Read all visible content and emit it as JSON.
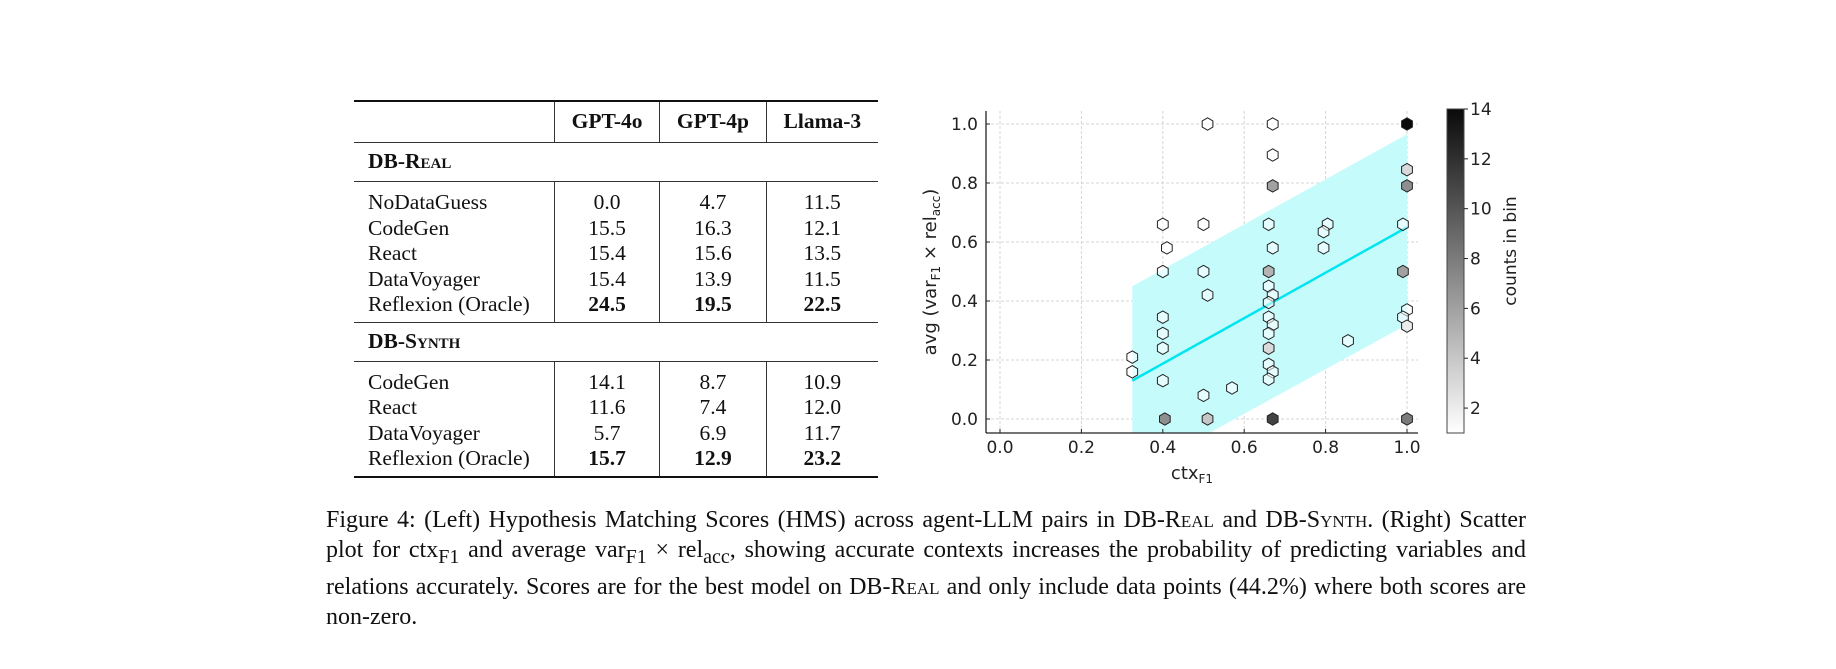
{
  "table": {
    "columns": [
      "",
      "GPT-4o",
      "GPT-4p",
      "Llama-3"
    ],
    "sections": [
      {
        "title": "DB-Real",
        "rows": [
          {
            "method": "NoDataGuess",
            "values": [
              "0.0",
              "4.7",
              "11.5"
            ],
            "bold": false
          },
          {
            "method": "CodeGen",
            "values": [
              "15.5",
              "16.3",
              "12.1"
            ],
            "bold": false
          },
          {
            "method": "React",
            "values": [
              "15.4",
              "15.6",
              "13.5"
            ],
            "bold": false
          },
          {
            "method": "DataVoyager",
            "values": [
              "15.4",
              "13.9",
              "11.5"
            ],
            "bold": false
          },
          {
            "method": "Reflexion (Oracle)",
            "values": [
              "24.5",
              "19.5",
              "22.5"
            ],
            "bold": true
          }
        ]
      },
      {
        "title": "DB-Synth",
        "rows": [
          {
            "method": "CodeGen",
            "values": [
              "14.1",
              "8.7",
              "10.9"
            ],
            "bold": false
          },
          {
            "method": "React",
            "values": [
              "11.6",
              "7.4",
              "12.0"
            ],
            "bold": false
          },
          {
            "method": "DataVoyager",
            "values": [
              "5.7",
              "6.9",
              "11.7"
            ],
            "bold": false
          },
          {
            "method": "Reflexion (Oracle)",
            "values": [
              "15.7",
              "12.9",
              "23.2"
            ],
            "bold": true
          }
        ]
      }
    ]
  },
  "caption": {
    "label": "Figure 4:",
    "part1": "(Left) Hypothesis Matching Scores (HMS) across agent-LLM pairs in DB-",
    "real_sc": "Real",
    "part2": " and DB-",
    "synth_sc": "Synth",
    "part3": ". (Right) Scatter plot for ctx",
    "sub_f1": "F1",
    "part4": " and average var",
    "sub_f1b": "F1",
    "part5": " × rel",
    "sub_acc": "acc",
    "part6": ", showing accurate contexts increases the probability of predicting variables and relations accurately. Scores are for the best model on DB-",
    "real_sc2": "Real",
    "part7": " and only include data points (44.2%) where both scores are non-zero."
  },
  "chart_data": {
    "type": "scatter",
    "subtype": "hexbin",
    "title": "",
    "xlabel": "ctx_F1",
    "ylabel": "avg (var_F1 × rel_acc)",
    "xlim": [
      -0.02,
      1.03
    ],
    "ylim": [
      -0.04,
      1.04
    ],
    "xticks": [
      0.0,
      0.2,
      0.4,
      0.6,
      0.8,
      1.0
    ],
    "yticks": [
      0.0,
      0.2,
      0.4,
      0.6,
      0.8,
      1.0
    ],
    "grid": true,
    "colorbar": {
      "label": "counts in bin",
      "min": 1,
      "max": 14,
      "ticks": [
        2,
        4,
        6,
        8,
        10,
        12,
        14
      ]
    },
    "regression": {
      "color": "#00e5ee",
      "x": [
        0.325,
        1.0
      ],
      "y": [
        0.13,
        0.65
      ]
    },
    "confidence_band": {
      "color": "#c6fbfc",
      "x": [
        0.325,
        1.0
      ],
      "upper": [
        0.45,
        0.965
      ],
      "lower": [
        -0.19,
        0.32
      ]
    },
    "points": [
      {
        "x": 0.325,
        "y": 0.21,
        "count": 1
      },
      {
        "x": 0.325,
        "y": 0.16,
        "count": 1
      },
      {
        "x": 0.4,
        "y": 0.66,
        "count": 1
      },
      {
        "x": 0.41,
        "y": 0.58,
        "count": 1
      },
      {
        "x": 0.4,
        "y": 0.5,
        "count": 1
      },
      {
        "x": 0.4,
        "y": 0.345,
        "count": 1
      },
      {
        "x": 0.4,
        "y": 0.29,
        "count": 1
      },
      {
        "x": 0.4,
        "y": 0.24,
        "count": 1
      },
      {
        "x": 0.4,
        "y": 0.13,
        "count": 1
      },
      {
        "x": 0.405,
        "y": 0.0,
        "count": 7
      },
      {
        "x": 0.5,
        "y": 0.66,
        "count": 1
      },
      {
        "x": 0.5,
        "y": 0.5,
        "count": 1
      },
      {
        "x": 0.51,
        "y": 0.42,
        "count": 1
      },
      {
        "x": 0.5,
        "y": 0.08,
        "count": 1
      },
      {
        "x": 0.51,
        "y": 0.0,
        "count": 4
      },
      {
        "x": 0.51,
        "y": 1.0,
        "count": 1
      },
      {
        "x": 0.57,
        "y": 0.105,
        "count": 1
      },
      {
        "x": 0.67,
        "y": 1.0,
        "count": 1
      },
      {
        "x": 0.67,
        "y": 0.895,
        "count": 1
      },
      {
        "x": 0.67,
        "y": 0.79,
        "count": 6
      },
      {
        "x": 0.66,
        "y": 0.66,
        "count": 1
      },
      {
        "x": 0.67,
        "y": 0.58,
        "count": 1
      },
      {
        "x": 0.66,
        "y": 0.5,
        "count": 5
      },
      {
        "x": 0.66,
        "y": 0.45,
        "count": 1
      },
      {
        "x": 0.67,
        "y": 0.42,
        "count": 1
      },
      {
        "x": 0.66,
        "y": 0.395,
        "count": 1
      },
      {
        "x": 0.66,
        "y": 0.345,
        "count": 1
      },
      {
        "x": 0.67,
        "y": 0.32,
        "count": 1
      },
      {
        "x": 0.66,
        "y": 0.29,
        "count": 1
      },
      {
        "x": 0.66,
        "y": 0.24,
        "count": 3
      },
      {
        "x": 0.66,
        "y": 0.185,
        "count": 1
      },
      {
        "x": 0.67,
        "y": 0.16,
        "count": 1
      },
      {
        "x": 0.66,
        "y": 0.135,
        "count": 1
      },
      {
        "x": 0.67,
        "y": 0.0,
        "count": 11
      },
      {
        "x": 0.805,
        "y": 0.66,
        "count": 1
      },
      {
        "x": 0.795,
        "y": 0.635,
        "count": 1
      },
      {
        "x": 0.795,
        "y": 0.58,
        "count": 1
      },
      {
        "x": 0.855,
        "y": 0.265,
        "count": 1
      },
      {
        "x": 1.0,
        "y": 1.0,
        "count": 14
      },
      {
        "x": 1.0,
        "y": 0.845,
        "count": 3
      },
      {
        "x": 1.0,
        "y": 0.79,
        "count": 7
      },
      {
        "x": 0.99,
        "y": 0.66,
        "count": 1
      },
      {
        "x": 0.99,
        "y": 0.5,
        "count": 6
      },
      {
        "x": 1.0,
        "y": 0.37,
        "count": 1
      },
      {
        "x": 0.99,
        "y": 0.345,
        "count": 1
      },
      {
        "x": 1.0,
        "y": 0.315,
        "count": 2
      },
      {
        "x": 1.0,
        "y": 0.0,
        "count": 8
      }
    ]
  }
}
